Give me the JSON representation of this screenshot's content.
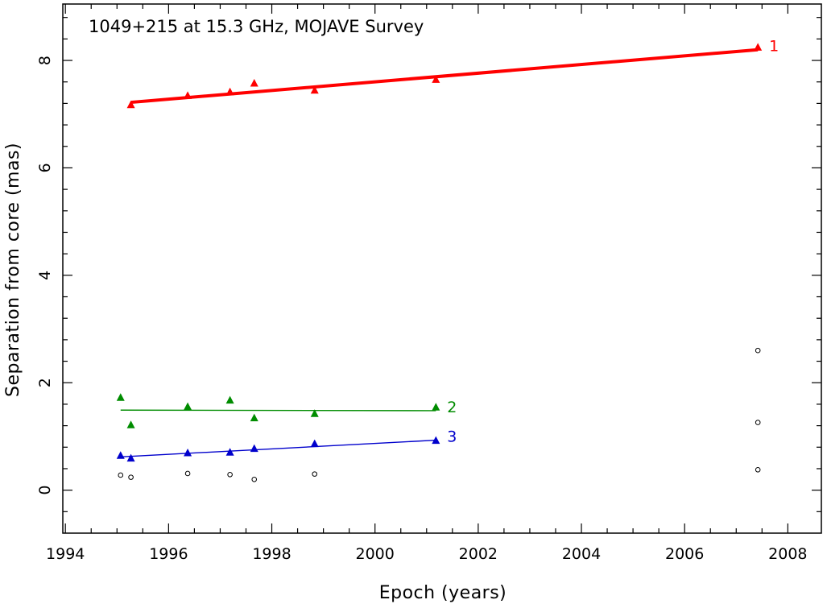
{
  "chart_data": {
    "type": "scatter",
    "title": "1049+215 at 15.3 GHz, MOJAVE Survey",
    "xlabel": "Epoch (years)",
    "ylabel": "Separation from core (mas)",
    "xlim": [
      1993.95,
      2008.65
    ],
    "ylim": [
      -0.8,
      9.05
    ],
    "x_ticks": [
      "1994",
      "1996",
      "1998",
      "2000",
      "2002",
      "2004",
      "2006",
      "2008"
    ],
    "x_tick_values": [
      1994,
      1996,
      1998,
      2000,
      2002,
      2004,
      2006,
      2008
    ],
    "y_ticks": [
      "0",
      "2",
      "4",
      "6",
      "8"
    ],
    "y_tick_values": [
      0,
      2,
      4,
      6,
      8
    ],
    "grid": false,
    "legend": "none",
    "series": [
      {
        "name": "1",
        "color": "#ff0000",
        "marker": "triangle",
        "x": [
          1995.27,
          1996.37,
          1997.19,
          1997.66,
          1998.83,
          2001.18,
          2007.42
        ],
        "y": [
          7.18,
          7.35,
          7.42,
          7.58,
          7.45,
          7.65,
          8.25
        ],
        "fit": {
          "x": [
            1995.27,
            2007.42
          ],
          "y": [
            7.22,
            8.2
          ]
        },
        "fit_width": "thick"
      },
      {
        "name": "2",
        "color": "#008c00",
        "marker": "triangle",
        "x": [
          1995.07,
          1995.27,
          1996.37,
          1997.19,
          1997.66,
          1998.83,
          2001.18
        ],
        "y": [
          1.73,
          1.22,
          1.56,
          1.68,
          1.35,
          1.43,
          1.55
        ],
        "fit": {
          "x": [
            1995.07,
            2001.18
          ],
          "y": [
            1.49,
            1.48
          ]
        },
        "fit_width": "thin"
      },
      {
        "name": "3",
        "color": "#0000cc",
        "marker": "triangle",
        "x": [
          1995.07,
          1995.27,
          1996.37,
          1997.19,
          1997.66,
          1998.83,
          2001.18
        ],
        "y": [
          0.65,
          0.6,
          0.7,
          0.71,
          0.78,
          0.87,
          0.93
        ],
        "fit": {
          "x": [
            1995.07,
            2001.18
          ],
          "y": [
            0.62,
            0.93
          ]
        },
        "fit_width": "thin"
      },
      {
        "color": "#000000",
        "marker": "circle-open",
        "x": [
          1995.07,
          1995.27,
          1996.37,
          1997.19,
          1997.66,
          1998.83,
          2007.42,
          2007.42,
          2007.42
        ],
        "y": [
          0.28,
          0.24,
          0.31,
          0.29,
          0.2,
          0.3,
          0.38,
          1.26,
          2.6
        ]
      }
    ]
  }
}
